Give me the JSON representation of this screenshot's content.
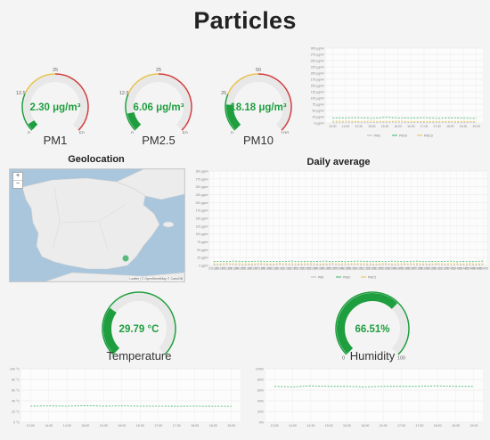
{
  "page": {
    "title": "Particles"
  },
  "gauges": [
    {
      "id": "pm1",
      "label": "PM1",
      "value_text": "2.30 μg/m³",
      "value": 2.3,
      "min": 0,
      "max": 50,
      "ticks": [
        "0",
        "12.5",
        "25",
        "50"
      ],
      "fill_color": "#1e9e3e"
    },
    {
      "id": "pm25",
      "label": "PM2.5",
      "value_text": "6.06 μg/m³",
      "value": 6.06,
      "min": 0,
      "max": 50,
      "ticks": [
        "0",
        "12.5",
        "25",
        "50"
      ],
      "fill_color": "#1e9e3e"
    },
    {
      "id": "pm10",
      "label": "PM10",
      "value_text": "18.18 μg/m³",
      "value": 18.18,
      "min": 0,
      "max": 100,
      "ticks": [
        "0",
        "25",
        "50",
        "100"
      ],
      "fill_color": "#1e9e3e"
    },
    {
      "id": "temp",
      "label": "Temperature",
      "value_text": "29.79 °C",
      "value": 29.79,
      "min": 0,
      "max": 100,
      "ticks": [],
      "fill_color": "#1e9e3e"
    },
    {
      "id": "hum",
      "label": "Humidity",
      "value_text": "66.51%",
      "value": 66.51,
      "min": 0,
      "max": 100,
      "ticks": [
        "0",
        "100"
      ],
      "fill_color": "#1e9e3e"
    }
  ],
  "geolocation": {
    "title": "Geolocation",
    "zoom_in": "+",
    "zoom_out": "−",
    "attribution": "Leaflet | © OpenStreetMap © CartoDB"
  },
  "daily": {
    "title": "Daily average"
  },
  "colors": {
    "pm1": "#b8b8b8",
    "pm25": "#e8c24a",
    "pm10": "#3db36b",
    "temp": "#3db36b",
    "hum": "#3db36b",
    "arc_green": "#1e9e3e",
    "arc_yellow": "#e8c24a",
    "arc_red": "#d23b3b"
  },
  "chart_data": [
    {
      "type": "line",
      "title": "",
      "y_ticks": [
        "0 μg/m³",
        "25 μg/m³",
        "50 μg/m³",
        "75 μg/m³",
        "100 μg/m³",
        "125 μg/m³",
        "150 μg/m³",
        "175 μg/m³",
        "200 μg/m³",
        "225 μg/m³",
        "250 μg/m³",
        "275 μg/m³",
        "300 μg/m³"
      ],
      "x": [
        "13:30",
        "14:00",
        "14:30",
        "15:00",
        "15:30",
        "16:00",
        "16:30",
        "17:00",
        "17:30",
        "18:00",
        "18:30",
        "19:00"
      ],
      "ylim": [
        0,
        300
      ],
      "legend": "bottom",
      "series": [
        {
          "name": "PM1",
          "values": [
            3,
            3,
            3,
            2,
            3,
            3,
            2,
            2,
            2,
            3,
            2,
            2
          ]
        },
        {
          "name": "PM10",
          "values": [
            19,
            20,
            21,
            18,
            22,
            20,
            19,
            21,
            18,
            20,
            19,
            18
          ]
        },
        {
          "name": "PM2.5",
          "values": [
            7,
            7,
            6,
            7,
            6,
            7,
            6,
            6,
            6,
            6,
            6,
            6
          ]
        }
      ]
    },
    {
      "type": "line",
      "title": "Daily average",
      "y_ticks": [
        "0 μg/m³",
        "25 μg/m³",
        "50 μg/m³",
        "75 μg/m³",
        "100 μg/m³",
        "125 μg/m³",
        "150 μg/m³",
        "175 μg/m³",
        "200 μg/m³",
        "225 μg/m³",
        "250 μg/m³",
        "275 μg/m³",
        "300 μg/m³"
      ],
      "x": [
        "2021/01",
        "2021/02",
        "2021/03",
        "2021/04",
        "2021/05",
        "2021/06",
        "2021/07",
        "2021/08",
        "2021/09",
        "2021/10",
        "2021/11",
        "2021/12",
        "2022/01",
        "2022/02",
        "2022/03",
        "2022/04",
        "2022/05",
        "2022/06",
        "2022/07",
        "2022/08",
        "2022/09",
        "2022/10",
        "2022/11",
        "2022/12",
        "2023/01",
        "2023/02",
        "2023/03",
        "2023/04",
        "2023/05",
        "2023/06",
        "2023/07",
        "2023/08",
        "2023/09",
        "2023/10",
        "2023/11",
        "2023/12",
        "2024/01",
        "2024/02",
        "2024/03",
        "2024/04",
        "2024/05",
        "2024/06"
      ],
      "ylim": [
        0,
        300
      ],
      "legend": "bottom",
      "series": [
        {
          "name": "PM1",
          "values": [
            2,
            2,
            3,
            3,
            2,
            2,
            2,
            3,
            2,
            2,
            3,
            3,
            2,
            2,
            3,
            2,
            2,
            2,
            3,
            2,
            2,
            3,
            3,
            2,
            2,
            2,
            3,
            2,
            2,
            3,
            3,
            2,
            2,
            2,
            3,
            2,
            2,
            3,
            2,
            2,
            2,
            3
          ]
        },
        {
          "name": "PM10",
          "values": [
            12,
            13,
            12,
            14,
            13,
            12,
            13,
            14,
            12,
            13,
            12,
            13,
            14,
            12,
            13,
            12,
            13,
            14,
            12,
            13,
            12,
            13,
            14,
            13,
            12,
            13,
            12,
            14,
            13,
            12,
            13,
            14,
            12,
            13,
            12,
            13,
            14,
            12,
            13,
            12,
            13,
            14
          ]
        },
        {
          "name": "PM2.5",
          "values": [
            5,
            5,
            6,
            5,
            6,
            5,
            5,
            6,
            5,
            5,
            6,
            5,
            6,
            5,
            5,
            6,
            5,
            5,
            6,
            5,
            6,
            5,
            5,
            6,
            5,
            5,
            6,
            5,
            6,
            5,
            5,
            6,
            5,
            5,
            6,
            5,
            6,
            5,
            5,
            6,
            5,
            5
          ]
        }
      ]
    },
    {
      "type": "line",
      "title": "",
      "y_ticks": [
        "0 °C",
        "20 °C",
        "40 °C",
        "60 °C",
        "80 °C",
        "100 °C"
      ],
      "x": [
        "13:30",
        "14:00",
        "14:30",
        "15:00",
        "15:30",
        "16:00",
        "16:30",
        "17:00",
        "17:30",
        "18:00",
        "18:30",
        "19:00"
      ],
      "ylim": [
        0,
        100
      ],
      "series": [
        {
          "name": "Temperature",
          "values": [
            30,
            30.5,
            30,
            31,
            30,
            30.5,
            30,
            30,
            29.8,
            30,
            29.9,
            29.8
          ]
        }
      ]
    },
    {
      "type": "line",
      "title": "",
      "y_ticks": [
        "0%",
        "20%",
        "40%",
        "60%",
        "80%",
        "100%"
      ],
      "x": [
        "13:30",
        "14:00",
        "14:30",
        "15:00",
        "15:30",
        "16:00",
        "16:30",
        "17:00",
        "17:30",
        "18:00",
        "18:30",
        "19:00"
      ],
      "ylim": [
        0,
        100
      ],
      "series": [
        {
          "name": "Humidity",
          "values": [
            67,
            66,
            68,
            67,
            67,
            66,
            67,
            67,
            67,
            68,
            67,
            67
          ]
        }
      ]
    }
  ]
}
